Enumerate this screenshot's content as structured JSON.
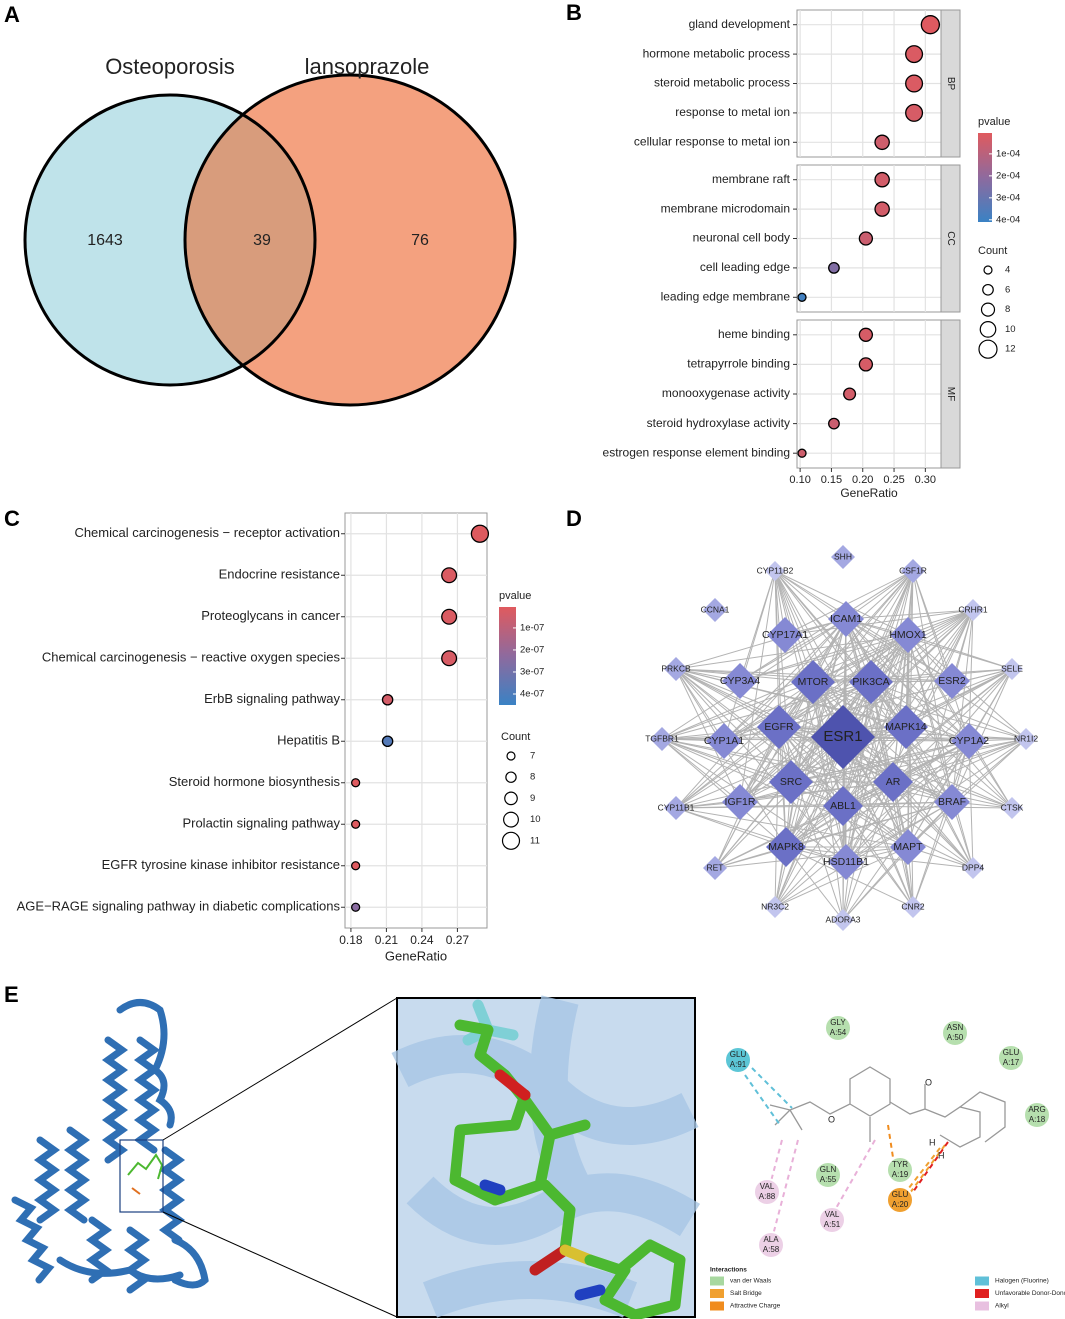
{
  "panel_labels": [
    "A",
    "B",
    "C",
    "D",
    "E"
  ],
  "chart_data": [
    {
      "type": "venn",
      "sets": [
        "Osteoporosis",
        "lansoprazole"
      ],
      "values": [
        1643,
        39,
        76
      ],
      "colors": [
        "#bfe3ea",
        "#f4a17f",
        "#d89c7c"
      ]
    },
    {
      "type": "dot",
      "xlabel": "GeneRatio",
      "xlim": [
        0.095,
        0.325
      ],
      "xticks": [
        {
          "value": 0.1,
          "label": "0.10"
        },
        0.15,
        {
          "value": 0.2,
          "label": "0.20"
        },
        0.25,
        {
          "value": 0.3,
          "label": "0.30"
        }
      ],
      "grid": true,
      "color_title": "pvalue",
      "color_lim": [
        5e-06,
        0.00041
      ],
      "color_ticks": [
        {
          "value": 0.0001,
          "label": "1e-04"
        },
        {
          "value": 0.0002,
          "label": "2e-04"
        },
        {
          "value": 0.0003,
          "label": "3e-04"
        },
        {
          "value": 0.0004,
          "label": "4e-04"
        }
      ],
      "colors": [
        "#e05a5e",
        "#8e6a9e",
        "#3a82c4"
      ],
      "size_title": "Count",
      "size_ticks": [
        4,
        6,
        8,
        10,
        12
      ],
      "groups": [
        {
          "name": "BP",
          "categories": [
            "gland development",
            "hormone metabolic process",
            "steroid metabolic process",
            "response to metal ion",
            "cellular response to metal ion"
          ],
          "values": [
            0.308,
            0.282,
            0.282,
            0.282,
            0.231
          ],
          "counts": [
            12,
            11,
            11,
            11,
            9
          ],
          "pvalues": [
            1e-05,
            2e-05,
            2e-05,
            3e-05,
            5e-05
          ]
        },
        {
          "name": "CC",
          "categories": [
            "membrane raft",
            "membrane microdomain",
            "neuronal cell body",
            "cell leading edge",
            "leading edge membrane"
          ],
          "values": [
            0.231,
            0.231,
            0.205,
            0.154,
            0.103
          ],
          "counts": [
            9,
            9,
            8,
            6,
            4
          ],
          "pvalues": [
            4e-05,
            4e-05,
            6e-05,
            0.00024,
            0.00039
          ]
        },
        {
          "name": "MF",
          "categories": [
            "heme binding",
            "tetrapyrrole binding",
            "monooxygenase activity",
            "steroid hydroxylase activity",
            "estrogen response element binding"
          ],
          "values": [
            0.205,
            0.205,
            0.179,
            0.154,
            0.103
          ],
          "counts": [
            8,
            8,
            7,
            6,
            4
          ],
          "pvalues": [
            3e-05,
            3e-05,
            4e-05,
            6e-05,
            5e-05
          ]
        }
      ]
    },
    {
      "type": "dot",
      "xlabel": "GeneRatio",
      "xlim": [
        0.175,
        0.295
      ],
      "xticks": [
        0.18,
        0.21,
        0.24,
        0.27
      ],
      "grid": true,
      "color_title": "pvalue",
      "color_lim": [
        5e-09,
        4.5e-07
      ],
      "color_ticks": [
        {
          "value": 1e-07,
          "label": "1e-07"
        },
        {
          "value": 2e-07,
          "label": "2e-07"
        },
        {
          "value": 3e-07,
          "label": "3e-07"
        },
        {
          "value": 4e-07,
          "label": "4e-07"
        }
      ],
      "colors": [
        "#e05a5e",
        "#8e6a9e",
        "#3a82c4"
      ],
      "size_title": "Count",
      "size_ticks": [
        7,
        8,
        9,
        10,
        11
      ],
      "categories": [
        "Chemical carcinogenesis − receptor activation",
        "Endocrine resistance",
        "Proteoglycans in cancer",
        "Chemical carcinogenesis − reactive oxygen species",
        "ErbB signaling pathway",
        "Hepatitis B",
        "Steroid hormone biosynthesis",
        "Prolactin signaling pathway",
        "EGFR tyrosine kinase inhibitor resistance",
        "AGE−RAGE signaling pathway in diabetic complications"
      ],
      "values": [
        0.289,
        0.263,
        0.263,
        0.263,
        0.211,
        0.211,
        0.184,
        0.184,
        0.184,
        0.184
      ],
      "counts": [
        11,
        10,
        10,
        10,
        8,
        8,
        7,
        7,
        7,
        7
      ],
      "pvalues": [
        1e-08,
        2e-08,
        2e-08,
        3e-08,
        4e-08,
        3.8e-07,
        1e-08,
        1e-08,
        1e-08,
        2.4e-07
      ]
    }
  ],
  "network": {
    "nodes": [
      "SHH",
      "CYP11B2",
      "CSF1R",
      "CCNA1",
      "ICAM1",
      "CRHR1",
      "CYP17A1",
      "HMOX1",
      "PRKCB",
      "CYP3A4",
      "MTOR",
      "PIK3CA",
      "ESR2",
      "SELE",
      "TGFBR1",
      "CYP1A1",
      "EGFR",
      "ESR1",
      "MAPK14",
      "CYP1A2",
      "NR1I2",
      "SRC",
      "AR",
      "CYP11B1",
      "IGF1R",
      "ABL1",
      "BRAF",
      "CTSK",
      "MAPK8",
      "MAPT",
      "HSD11B1",
      "RET",
      "DPP4",
      "NR3C2",
      "ADORA3",
      "CNR2"
    ]
  },
  "docking": {
    "residues": [
      {
        "name": "GLY",
        "id": "A:54"
      },
      {
        "name": "ASN",
        "id": "A:50"
      },
      {
        "name": "GLU",
        "id": "A:17"
      },
      {
        "name": "GLU",
        "id": "A:91"
      },
      {
        "name": "ARG",
        "id": "A:18"
      },
      {
        "name": "GLN",
        "id": "A:55"
      },
      {
        "name": "TYR",
        "id": "A:19"
      },
      {
        "name": "GLU",
        "id": "A:20"
      },
      {
        "name": "VAL",
        "id": "A:88"
      },
      {
        "name": "VAL",
        "id": "A:51"
      },
      {
        "name": "ALA",
        "id": "A:58"
      }
    ],
    "atoms": [
      "H",
      "H"
    ],
    "legend_title": "Interactions",
    "legend": [
      {
        "name": "van der Waals",
        "color": "#a8d8a0"
      },
      {
        "name": "Salt Bridge",
        "color": "#f0a030"
      },
      {
        "name": "Attractive Charge",
        "color": "#f08c1e"
      },
      {
        "name": "Halogen (Fluorine)",
        "color": "#60c0d8"
      },
      {
        "name": "Unfavorable Donor-Donor",
        "color": "#e02020"
      },
      {
        "name": "Alkyl",
        "color": "#e8c0e0"
      }
    ]
  }
}
